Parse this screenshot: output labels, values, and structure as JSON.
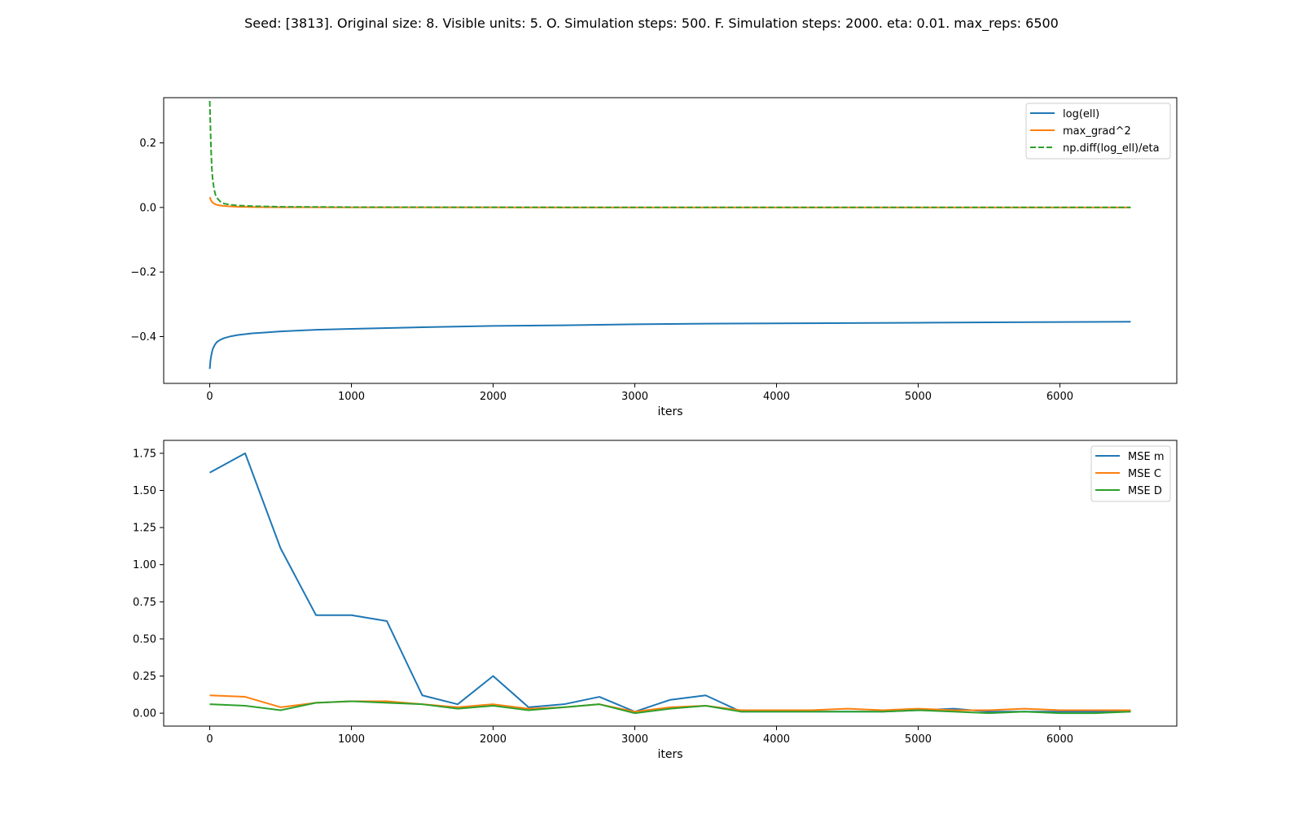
{
  "title": "Seed: [3813]. Original size: 8. Visible units: 5. O. Simulation steps: 500. F. Simulation steps: 2000. eta: 0.01. max_reps: 6500",
  "chart_data": [
    {
      "type": "line",
      "title": "",
      "xlabel": "iters",
      "ylabel": "",
      "xlim": [
        -325,
        6825
      ],
      "ylim": [
        -0.545,
        0.34
      ],
      "xticks": [
        0,
        1000,
        2000,
        3000,
        4000,
        5000,
        6000
      ],
      "yticks": [
        0.2,
        0.0,
        -0.2,
        -0.4
      ],
      "ytick_labels": [
        "0.2",
        "0.0",
        "−0.2",
        "−0.4"
      ],
      "legend_position": "top-right",
      "series": [
        {
          "name": "log(ell)",
          "color": "#1f77b4",
          "dash": "solid",
          "x": [
            0,
            5,
            10,
            20,
            35,
            50,
            75,
            100,
            150,
            200,
            300,
            400,
            500,
            750,
            1000,
            1500,
            2000,
            2500,
            3000,
            3500,
            4000,
            4500,
            5000,
            5500,
            6000,
            6500
          ],
          "y": [
            -0.5,
            -0.475,
            -0.46,
            -0.44,
            -0.426,
            -0.417,
            -0.41,
            -0.405,
            -0.399,
            -0.395,
            -0.39,
            -0.387,
            -0.384,
            -0.379,
            -0.376,
            -0.371,
            -0.367,
            -0.365,
            -0.362,
            -0.36,
            -0.359,
            -0.358,
            -0.357,
            -0.356,
            -0.355,
            -0.354
          ]
        },
        {
          "name": "max_grad^2",
          "color": "#ff7f0e",
          "dash": "solid",
          "x": [
            0,
            5,
            10,
            20,
            35,
            50,
            75,
            100,
            150,
            200,
            300,
            500,
            1000,
            2000,
            3000,
            4000,
            5000,
            6000,
            6500
          ],
          "y": [
            0.032,
            0.026,
            0.021,
            0.015,
            0.011,
            0.008,
            0.006,
            0.0045,
            0.003,
            0.002,
            0.0012,
            0.0006,
            0.0003,
            0.0001,
            0.0,
            0.0,
            0.0,
            0.0,
            0.0
          ]
        },
        {
          "name": "np.diff(log_ell)/eta",
          "color": "#2ca02c",
          "dash": "dashed",
          "x": [
            0,
            3,
            6,
            10,
            15,
            20,
            30,
            40,
            50,
            75,
            100,
            150,
            200,
            300,
            500,
            1000,
            2000,
            3000,
            4000,
            5000,
            6000,
            6500
          ],
          "y": [
            0.33,
            0.28,
            0.23,
            0.17,
            0.12,
            0.09,
            0.058,
            0.04,
            0.03,
            0.018,
            0.012,
            0.008,
            0.006,
            0.004,
            0.002,
            0.001,
            0.0005,
            0.0003,
            0.0002,
            0.0001,
            0.0001,
            0.0001
          ]
        }
      ]
    },
    {
      "type": "line",
      "title": "",
      "xlabel": "iters",
      "ylabel": "",
      "xlim": [
        -325,
        6825
      ],
      "ylim": [
        -0.087,
        1.837
      ],
      "xticks": [
        0,
        1000,
        2000,
        3000,
        4000,
        5000,
        6000
      ],
      "yticks": [
        0.0,
        0.25,
        0.5,
        0.75,
        1.0,
        1.25,
        1.5,
        1.75
      ],
      "ytick_labels": [
        "0.00",
        "0.25",
        "0.50",
        "0.75",
        "1.00",
        "1.25",
        "1.50",
        "1.75"
      ],
      "legend_position": "top-right",
      "x": [
        0,
        250,
        500,
        750,
        1000,
        1250,
        1500,
        1750,
        2000,
        2250,
        2500,
        2750,
        3000,
        3250,
        3500,
        3750,
        4000,
        4250,
        4500,
        4750,
        5000,
        5250,
        5500,
        5750,
        6000,
        6250,
        6500
      ],
      "series": [
        {
          "name": "MSE m",
          "color": "#1f77b4",
          "values": [
            1.62,
            1.75,
            1.11,
            0.66,
            0.66,
            0.62,
            0.12,
            0.06,
            0.25,
            0.04,
            0.06,
            0.11,
            0.01,
            0.09,
            0.12,
            0.01,
            0.01,
            0.01,
            0.01,
            0.01,
            0.02,
            0.03,
            0.01,
            0.01,
            0.01,
            0.01,
            0.01
          ]
        },
        {
          "name": "MSE C",
          "color": "#ff7f0e",
          "values": [
            0.12,
            0.11,
            0.04,
            0.07,
            0.08,
            0.08,
            0.06,
            0.04,
            0.06,
            0.03,
            0.04,
            0.06,
            0.01,
            0.04,
            0.05,
            0.02,
            0.02,
            0.02,
            0.03,
            0.02,
            0.03,
            0.02,
            0.02,
            0.03,
            0.02,
            0.02,
            0.02
          ]
        },
        {
          "name": "MSE D",
          "color": "#2ca02c",
          "values": [
            0.06,
            0.05,
            0.02,
            0.07,
            0.08,
            0.07,
            0.06,
            0.03,
            0.05,
            0.02,
            0.04,
            0.06,
            0.0,
            0.03,
            0.05,
            0.01,
            0.01,
            0.01,
            0.01,
            0.01,
            0.02,
            0.01,
            0.0,
            0.01,
            0.0,
            0.0,
            0.01
          ]
        }
      ]
    }
  ]
}
